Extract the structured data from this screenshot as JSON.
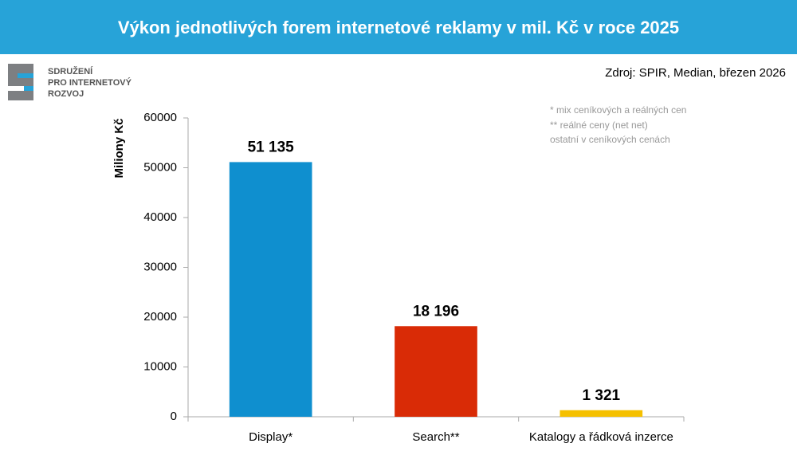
{
  "logo": {
    "lines": [
      "SDRUŽENÍ",
      "PRO INTERNETOVÝ",
      "ROZVOJ"
    ]
  },
  "chart_data": {
    "type": "bar",
    "title": "Výkon jednotlivých forem internetové reklamy v mil. Kč v roce 2025",
    "source": "Zdroj: SPIR, Median, březen 2026",
    "notes": [
      "* mix ceníkových a reálných cen",
      "** reálné ceny (net net)",
      "ostatní v ceníkových cenách"
    ],
    "y_label": "Miliony Kč",
    "categories": [
      "Display*",
      "Search**",
      "Katalogy a řádková inzerce"
    ],
    "values": [
      51135,
      18196,
      1321
    ],
    "value_labels": [
      "51 135",
      "18 196",
      "1 321"
    ],
    "colors": [
      "#0f8fcf",
      "#d92b06",
      "#f5c000"
    ],
    "ylim": [
      0,
      60000
    ],
    "yticks": [
      0,
      10000,
      20000,
      30000,
      40000,
      50000,
      60000
    ],
    "grid": false
  }
}
